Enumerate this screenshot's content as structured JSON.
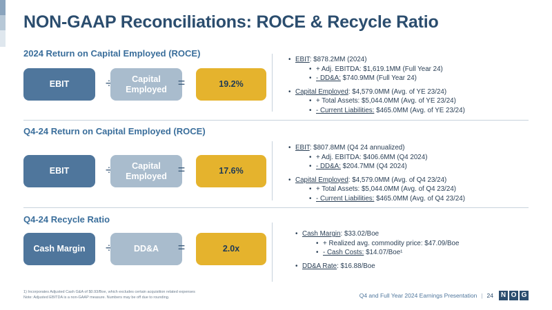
{
  "title": "NON-GAAP Reconciliations: ROCE & Recycle Ratio",
  "sections": [
    {
      "title": "2024 Return on Capital Employed (ROCE)",
      "left_label": "EBIT",
      "right_label": "Capital Employed",
      "divide": "÷",
      "equals": "=",
      "result": "19.2%",
      "bullets": [
        {
          "level": 1,
          "label": "EBIT",
          "text": ": $878.2MM (2024)"
        },
        {
          "level": 2,
          "label": "",
          "text": "+ Adj. EBITDA: $1,619.1MM (Full Year 24)"
        },
        {
          "level": 2,
          "label": "- DD&A:",
          "text": " $740.9MM (Full Year 24)"
        },
        {
          "level": 1,
          "label": "Capital Employed",
          "text": ": $4,579.0MM (Avg. of YE 23/24)"
        },
        {
          "level": 2,
          "label": "",
          "text": "+ Total Assets: $5,044.0MM (Avg. of YE 23/24)"
        },
        {
          "level": 2,
          "label": "- Current Liabilities:",
          "text": " $465.0MM (Avg. of YE 23/24)"
        }
      ]
    },
    {
      "title": "Q4-24 Return on Capital Employed (ROCE)",
      "left_label": "EBIT",
      "right_label": "Capital Employed",
      "divide": "÷",
      "equals": "=",
      "result": "17.6%",
      "bullets": [
        {
          "level": 1,
          "label": "EBIT",
          "text": ": $807.8MM (Q4 24 annualized)"
        },
        {
          "level": 2,
          "label": "",
          "text": "+ Adj. EBITDA: $406.6MM (Q4 2024)"
        },
        {
          "level": 2,
          "label": "- DD&A:",
          "text": " $204.7MM (Q4 2024)"
        },
        {
          "level": 1,
          "label": "Capital Employed",
          "text": ": $4,579.0MM (Avg. of Q4 23/24)"
        },
        {
          "level": 2,
          "label": "",
          "text": "+ Total Assets: $5,044.0MM (Avg. of Q4 23/24)"
        },
        {
          "level": 2,
          "label": "- Current Liabilities:",
          "text": " $465.0MM (Avg. of Q4 23/24)"
        }
      ]
    },
    {
      "title": "Q4-24 Recycle Ratio",
      "left_label": "Cash Margin",
      "right_label": "DD&A",
      "divide": "÷",
      "equals": "=",
      "result": "2.0x",
      "bullets": [
        {
          "level": 1,
          "label": "Cash Margin",
          "text": ": $33.02/Boe"
        },
        {
          "level": 2,
          "label": "",
          "text": "+ Realized avg. commodity price: $47.09/Boe"
        },
        {
          "level": 2,
          "label": "- Cash Costs:",
          "text": " $14.07/Boe¹"
        },
        {
          "level": 1,
          "label": "DD&A Rate",
          "text": ": $16.88/Boe"
        }
      ]
    }
  ],
  "footnotes": [
    "1)     Incorporates Adjusted Cash G&A of $0.93/Boe, which excludes certain acquisition related expenses",
    "Note: Adjusted EBITDA is a non-GAAP measure. Numbers may be off due to rounding."
  ],
  "footer": {
    "presentation": "Q4 and Full Year 2024 Earnings Presentation",
    "separator": "|",
    "page": "24",
    "logo_letters": [
      "N",
      "O",
      "G"
    ]
  }
}
